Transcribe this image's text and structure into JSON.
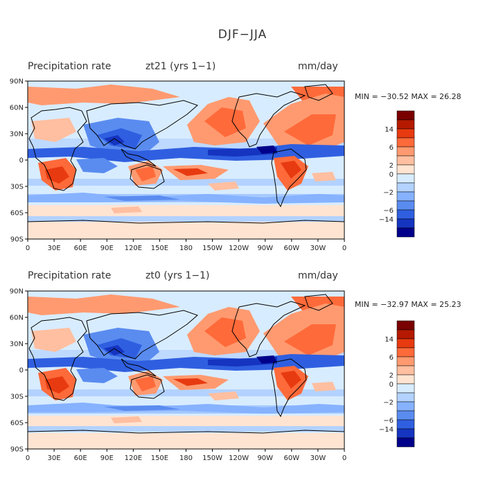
{
  "title": "DJF−JJA",
  "panels": [
    {
      "title": "Precipitation rate",
      "run": "zt21 (yrs 1−1)",
      "units": "mm/day",
      "min_label": "MIN = −30.52",
      "max_label": "MAX =  26.28"
    },
    {
      "title": "Precipitation rate",
      "run": "zt0 (yrs 1−1)",
      "units": "mm/day",
      "min_label": "MIN = −32.97",
      "max_label": "MAX =  25.23"
    }
  ],
  "axes": {
    "lat_ticks": [
      "90N",
      "60N",
      "30N",
      "0",
      "30S",
      "60S",
      "90S"
    ],
    "lon_ticks": [
      "0",
      "30E",
      "60E",
      "90E",
      "120E",
      "150E",
      "180",
      "150W",
      "120W",
      "90W",
      "60W",
      "30W",
      "0"
    ]
  },
  "colorbar": {
    "labels": [
      "14",
      "6",
      "2",
      "0",
      "−2",
      "−6",
      "−14"
    ],
    "colors": [
      "#7a0000",
      "#b51a00",
      "#e83a10",
      "#ff6a3a",
      "#ff9a70",
      "#ffbfa0",
      "#ffe4d2",
      "#d8ecff",
      "#b3d2ff",
      "#86b2ff",
      "#5a8cf0",
      "#2f5fe0",
      "#1534c0",
      "#00008a"
    ]
  }
}
